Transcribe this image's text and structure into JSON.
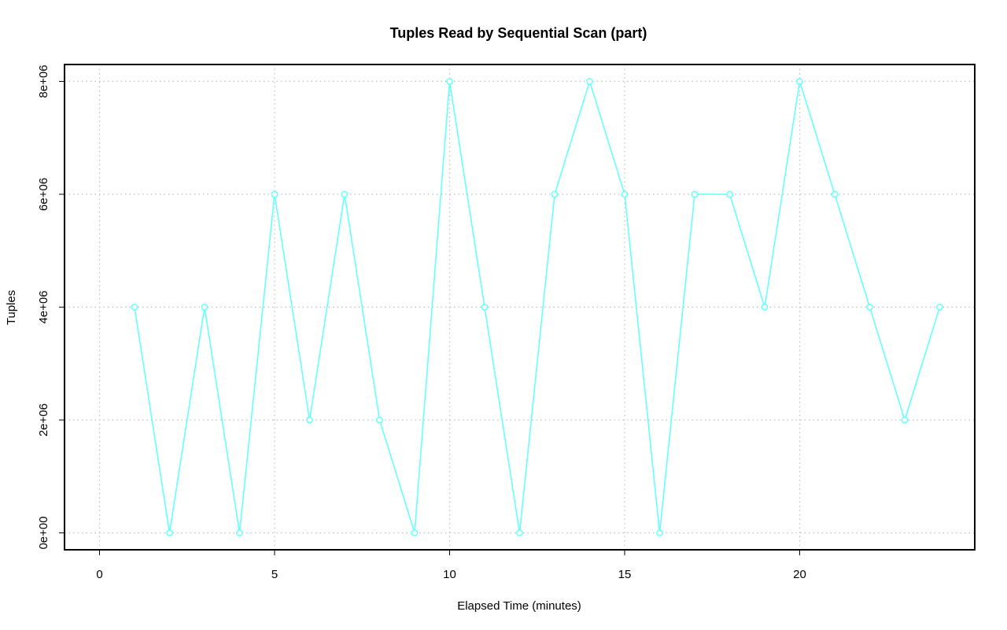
{
  "chart_data": {
    "type": "line",
    "title": "Tuples Read by Sequential Scan (part)",
    "xlabel": "Elapsed Time (minutes)",
    "ylabel": "Tuples",
    "xlim": [
      -1,
      25
    ],
    "ylim": [
      -300000,
      8300000
    ],
    "x_ticks": [
      0,
      5,
      10,
      15,
      20
    ],
    "x_tick_labels": [
      "0",
      "5",
      "10",
      "15",
      "20"
    ],
    "y_ticks": [
      0,
      2000000,
      4000000,
      6000000,
      8000000
    ],
    "y_tick_labels": [
      "0e+00",
      "2e+06",
      "4e+06",
      "6e+06",
      "8e+06"
    ],
    "grid": true,
    "series_color": "#66ffff",
    "series": [
      {
        "x": [
          1,
          2,
          3,
          4,
          5,
          6,
          7,
          8,
          9,
          10,
          11,
          12,
          13,
          14,
          15,
          16,
          17,
          18,
          19,
          20,
          21,
          22,
          23,
          24
        ],
        "values": [
          4000000,
          0,
          4000000,
          0,
          6000000,
          2000000,
          6000000,
          2000000,
          0,
          8000000,
          4000000,
          0,
          6000000,
          8000000,
          6000000,
          0,
          6000000,
          6000000,
          4000000,
          8000000,
          6000000,
          4000000,
          2000000,
          4000000
        ]
      }
    ]
  }
}
